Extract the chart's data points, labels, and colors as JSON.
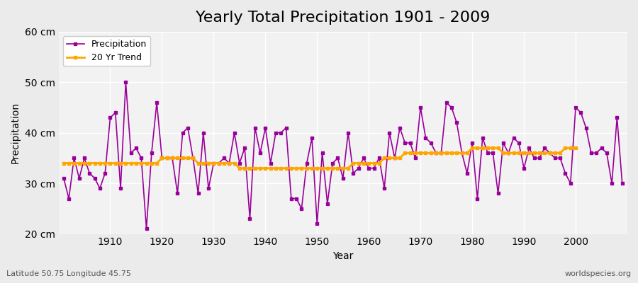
{
  "title": "Yearly Total Precipitation 1901 - 2009",
  "xlabel": "Year",
  "ylabel": "Precipitation",
  "subtitle": "Latitude 50.75 Longitude 45.75",
  "watermark": "worldspecies.org",
  "years": [
    1901,
    1902,
    1903,
    1904,
    1905,
    1906,
    1907,
    1908,
    1909,
    1910,
    1911,
    1912,
    1913,
    1914,
    1915,
    1916,
    1917,
    1918,
    1919,
    1920,
    1921,
    1922,
    1923,
    1924,
    1925,
    1926,
    1927,
    1928,
    1929,
    1930,
    1931,
    1932,
    1933,
    1934,
    1935,
    1936,
    1937,
    1938,
    1939,
    1940,
    1941,
    1942,
    1943,
    1944,
    1945,
    1946,
    1947,
    1948,
    1949,
    1950,
    1951,
    1952,
    1953,
    1954,
    1955,
    1956,
    1957,
    1958,
    1959,
    1960,
    1961,
    1962,
    1963,
    1964,
    1965,
    1966,
    1967,
    1968,
    1969,
    1970,
    1971,
    1972,
    1973,
    1974,
    1975,
    1976,
    1977,
    1978,
    1979,
    1980,
    1981,
    1982,
    1983,
    1984,
    1985,
    1986,
    1987,
    1988,
    1989,
    1990,
    1991,
    1992,
    1993,
    1994,
    1995,
    1996,
    1997,
    1998,
    1999,
    2000,
    2001,
    2002,
    2003,
    2004,
    2005,
    2006,
    2007,
    2008,
    2009
  ],
  "precip": [
    31,
    27,
    35,
    31,
    35,
    32,
    31,
    29,
    32,
    43,
    44,
    29,
    50,
    36,
    37,
    35,
    21,
    36,
    46,
    35,
    35,
    35,
    28,
    40,
    41,
    35,
    28,
    40,
    29,
    34,
    34,
    35,
    34,
    40,
    34,
    37,
    23,
    41,
    36,
    41,
    34,
    40,
    40,
    41,
    27,
    27,
    25,
    34,
    39,
    22,
    36,
    26,
    34,
    35,
    31,
    40,
    32,
    33,
    35,
    33,
    33,
    35,
    29,
    40,
    35,
    41,
    38,
    38,
    35,
    45,
    39,
    38,
    36,
    36,
    46,
    45,
    42,
    36,
    32,
    38,
    27,
    39,
    36,
    36,
    28,
    38,
    36,
    39,
    38,
    33,
    37,
    35,
    35,
    37,
    36,
    35,
    35,
    32,
    30,
    45,
    44,
    41,
    36,
    36,
    37,
    36,
    30,
    43,
    30
  ],
  "trend": [
    34,
    34,
    34,
    34,
    34,
    34,
    34,
    34,
    34,
    34,
    34,
    34,
    34,
    34,
    34,
    34,
    34,
    34,
    34,
    35,
    35,
    35,
    35,
    35,
    35,
    35,
    34,
    34,
    34,
    34,
    34,
    34,
    34,
    34,
    33,
    33,
    33,
    33,
    33,
    33,
    33,
    33,
    33,
    33,
    33,
    33,
    33,
    33,
    33,
    33,
    33,
    33,
    33,
    33,
    33,
    33,
    34,
    34,
    34,
    34,
    34,
    34,
    35,
    35,
    35,
    35,
    36,
    36,
    36,
    36,
    36,
    36,
    36,
    36,
    36,
    36,
    36,
    36,
    36,
    37,
    37,
    37,
    37,
    37,
    37,
    36,
    36,
    36,
    36,
    36,
    36,
    36,
    36,
    36,
    36,
    36,
    36,
    37,
    37,
    37
  ],
  "trend_years": [
    1901,
    1902,
    1903,
    1904,
    1905,
    1906,
    1907,
    1908,
    1909,
    1910,
    1911,
    1912,
    1913,
    1914,
    1915,
    1916,
    1917,
    1918,
    1919,
    1920,
    1921,
    1922,
    1923,
    1924,
    1925,
    1926,
    1927,
    1928,
    1929,
    1930,
    1931,
    1932,
    1933,
    1934,
    1935,
    1936,
    1937,
    1938,
    1939,
    1940,
    1941,
    1942,
    1943,
    1944,
    1945,
    1946,
    1947,
    1948,
    1949,
    1950,
    1951,
    1952,
    1953,
    1954,
    1955,
    1956,
    1957,
    1958,
    1959,
    1960,
    1961,
    1962,
    1963,
    1964,
    1965,
    1966,
    1967,
    1968,
    1969,
    1970,
    1971,
    1972,
    1973,
    1974,
    1975,
    1976,
    1977,
    1978,
    1979,
    1980,
    1981,
    1982,
    1983,
    1984,
    1985,
    1986,
    1987,
    1988,
    1989,
    1990,
    1991,
    1992,
    1993,
    1994,
    1995,
    1996,
    1997,
    1998,
    1999,
    2000
  ],
  "ylim": [
    20,
    60
  ],
  "yticks": [
    20,
    30,
    40,
    50,
    60
  ],
  "ytick_labels": [
    "20 cm",
    "30 cm",
    "40 cm",
    "50 cm",
    "60 cm"
  ],
  "xticks": [
    1910,
    1920,
    1930,
    1940,
    1950,
    1960,
    1970,
    1980,
    1990,
    2000
  ],
  "precip_color": "#990099",
  "trend_color": "#FFA500",
  "bg_color": "#EBEBEB",
  "plot_bg_color": "#F2F2F2",
  "grid_color": "#FFFFFF",
  "title_fontsize": 16,
  "axis_fontsize": 10,
  "legend_fontsize": 9
}
